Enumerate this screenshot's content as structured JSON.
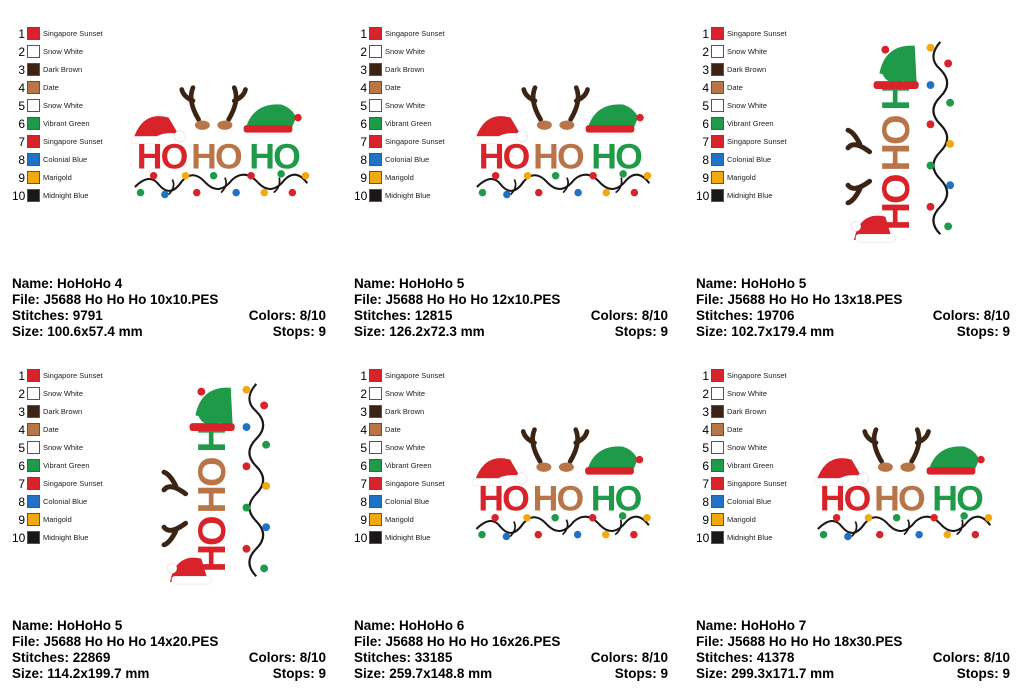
{
  "palette": [
    {
      "num": "1",
      "name": "Singapore Sunset",
      "color": "#d9232a"
    },
    {
      "num": "2",
      "name": "Snow White",
      "color": "#ffffff"
    },
    {
      "num": "3",
      "name": "Dark Brown",
      "color": "#3b2414"
    },
    {
      "num": "4",
      "name": "Date",
      "color": "#b97447"
    },
    {
      "num": "5",
      "name": "Snow White",
      "color": "#ffffff"
    },
    {
      "num": "6",
      "name": "Vibrant Green",
      "color": "#1e9a48"
    },
    {
      "num": "7",
      "name": "Singapore Sunset",
      "color": "#d9232a"
    },
    {
      "num": "8",
      "name": "Colonial Blue",
      "color": "#1f72c4"
    },
    {
      "num": "9",
      "name": "Marigold",
      "color": "#f1a90d"
    },
    {
      "num": "10",
      "name": "Midnight Blue",
      "color": "#1a1716"
    }
  ],
  "labels": {
    "name": "Name:",
    "file": "File:",
    "stitches": "Stitches:",
    "size": "Size:",
    "colors": "Colors:",
    "stops": "Stops:"
  },
  "designs": [
    {
      "name": "HoHoHo 4",
      "file": "J5688 Ho Ho Ho 10x10.PES",
      "stitches": "9791",
      "colors": "8/10",
      "size": "100.6x57.4 mm",
      "stops": "9"
    },
    {
      "name": "HoHoHo 5",
      "file": "J5688 Ho Ho Ho 12x10.PES",
      "stitches": "12815",
      "colors": "8/10",
      "size": "126.2x72.3 mm",
      "stops": "9"
    },
    {
      "name": "HoHoHo 5",
      "file": "J5688 Ho Ho Ho 13x18.PES",
      "stitches": "19706",
      "colors": "8/10",
      "size": "102.7x179.4 mm",
      "stops": "9"
    },
    {
      "name": "HoHoHo 5",
      "file": "J5688 Ho Ho Ho 14x20.PES",
      "stitches": "22869",
      "colors": "8/10",
      "size": "114.2x199.7 mm",
      "stops": "9"
    },
    {
      "name": "HoHoHo 6",
      "file": "J5688 Ho Ho Ho 16x26.PES",
      "stitches": "33185",
      "colors": "8/10",
      "size": "259.7x148.8 mm",
      "stops": "9"
    },
    {
      "name": "HoHoHo 7",
      "file": "J5688 Ho Ho Ho 18x30.PES",
      "stitches": "41378",
      "colors": "8/10",
      "size": "299.3x171.7 mm",
      "stops": "9"
    }
  ],
  "artwork": {
    "words": [
      "HO",
      "HO",
      "HO"
    ]
  }
}
